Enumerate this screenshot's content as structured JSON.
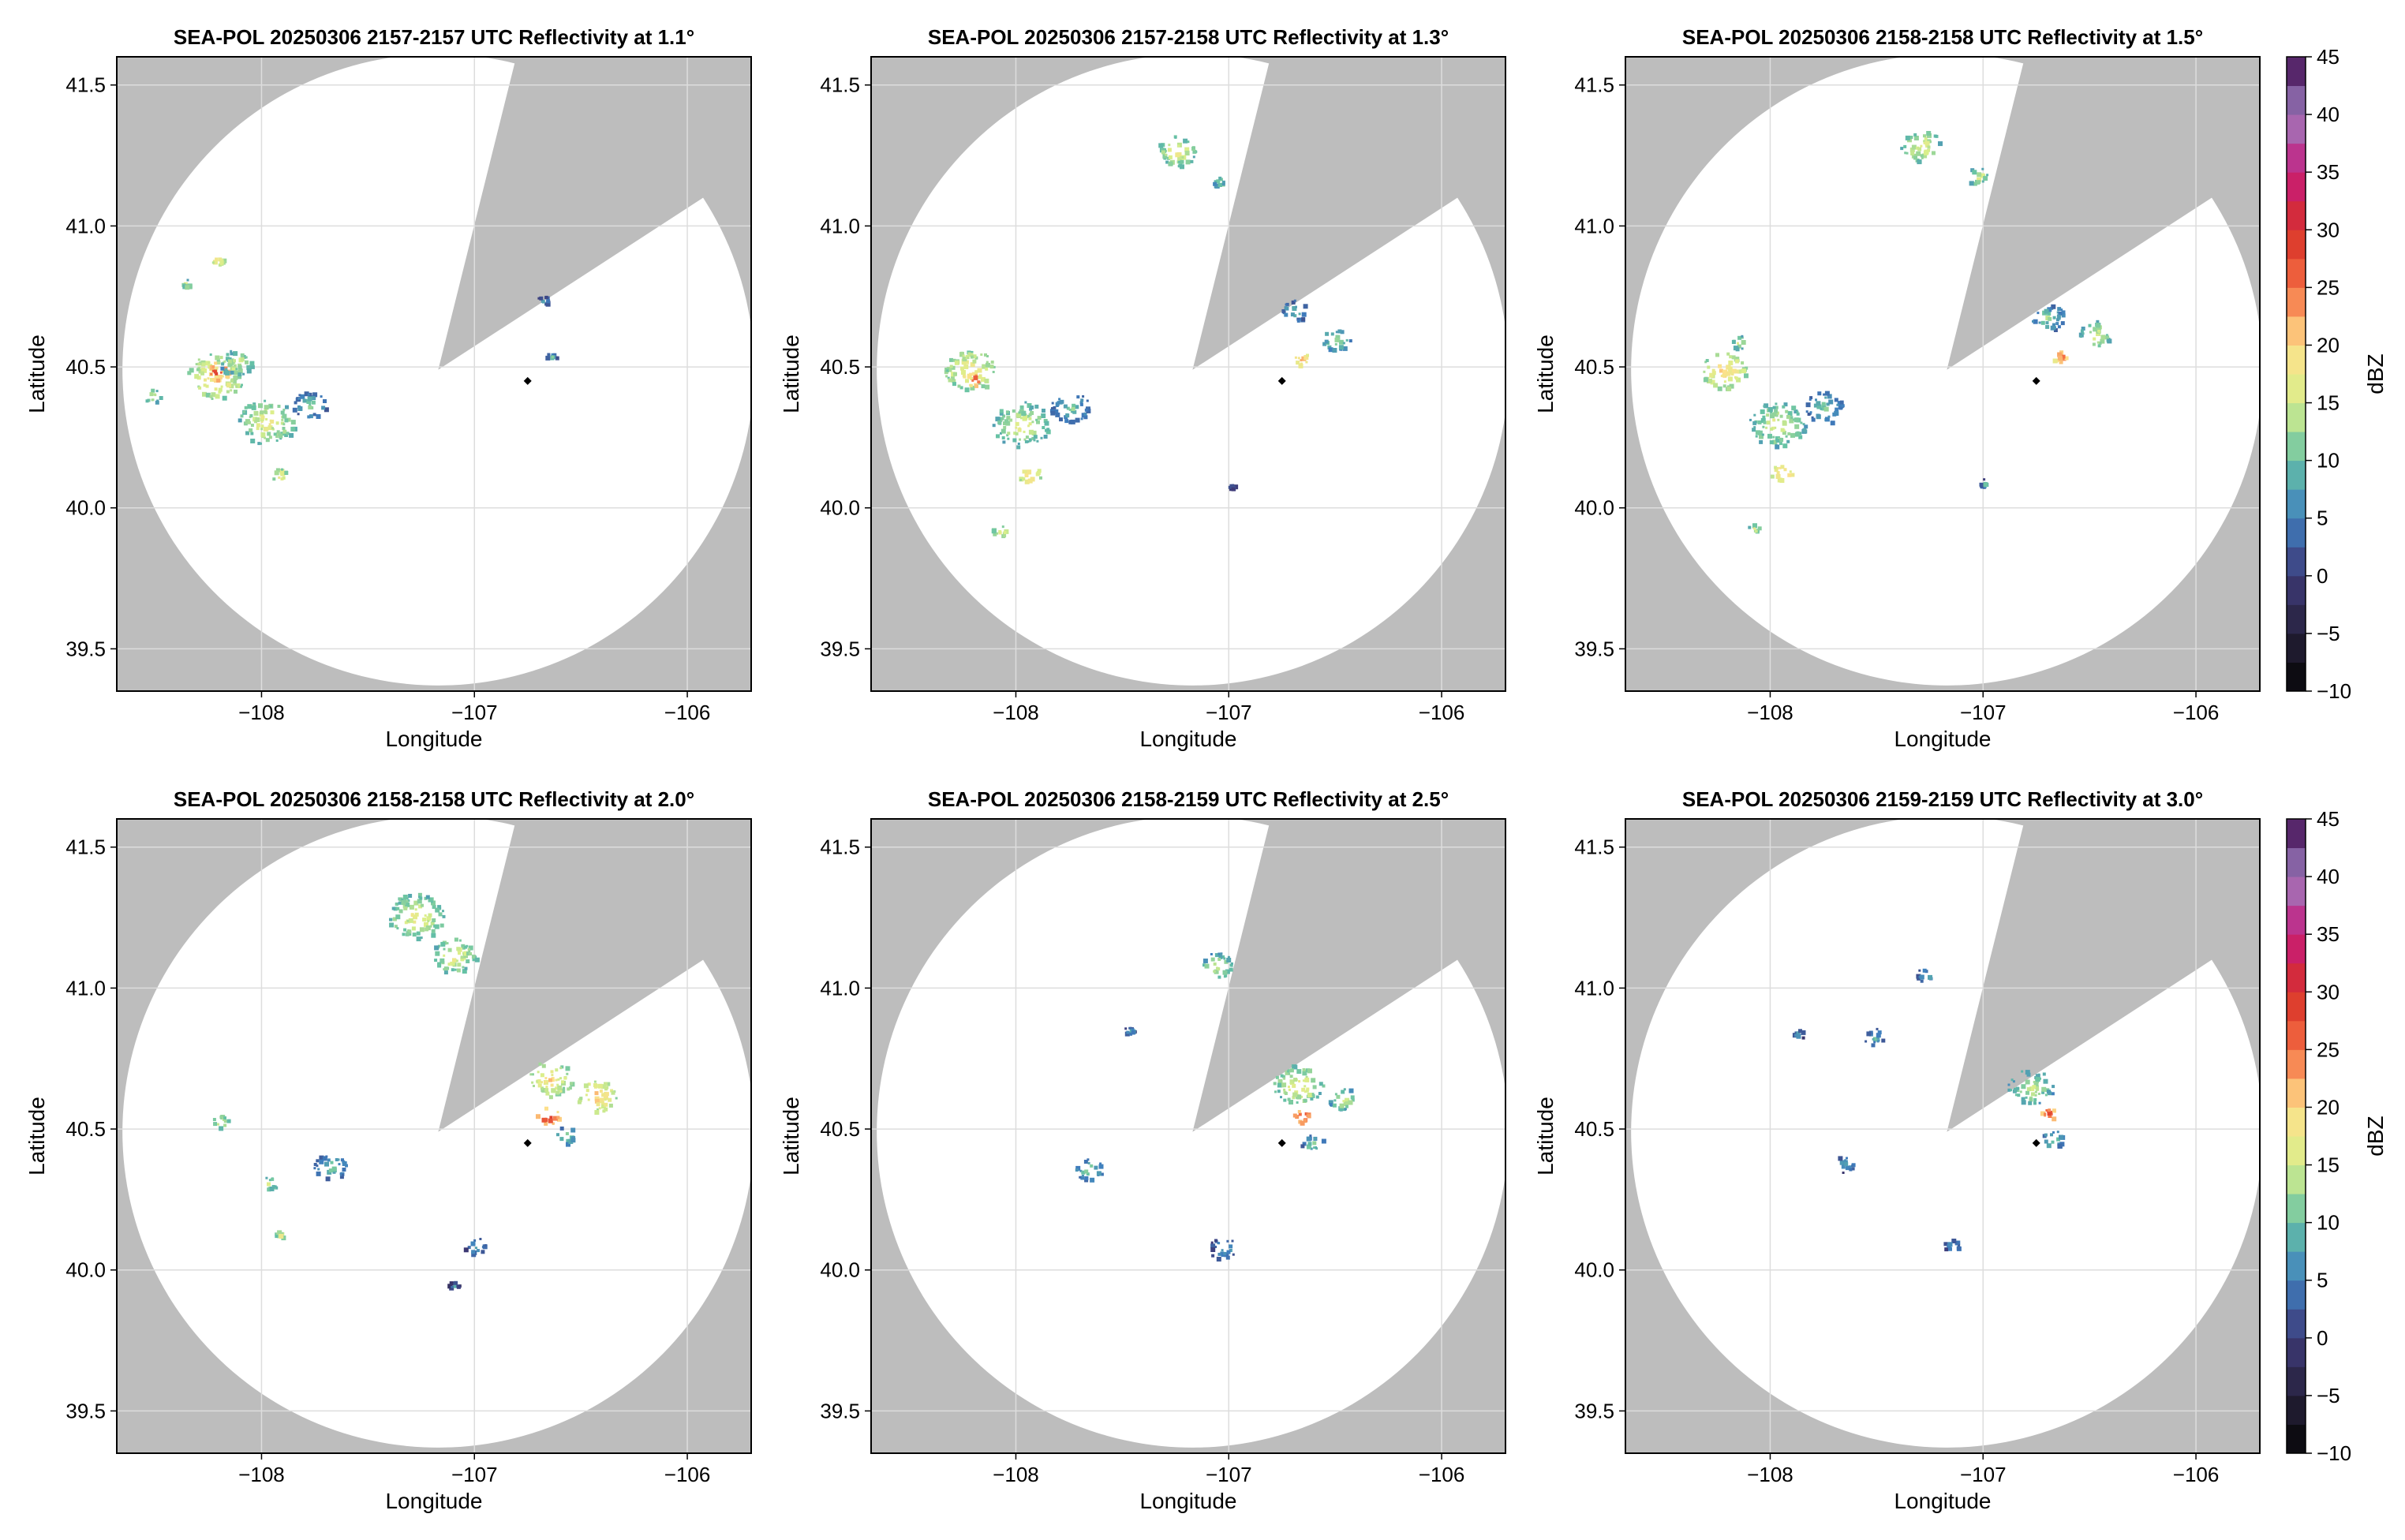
{
  "figure": {
    "background": "#ffffff",
    "outside_coverage_color": "#bdbdbd",
    "coverage_color": "#ffffff",
    "grid_color": "#dddddd"
  },
  "chart_data": [
    {
      "type": "heatmap",
      "title": "SEA-POL 20250306 2157-2157 UTC Reflectivity at 1.1°",
      "xlabel": "Longitude",
      "ylabel": "Latitude",
      "xlim": [
        -108.68,
        -105.7
      ],
      "ylim": [
        39.35,
        41.6
      ],
      "xticks": [
        -108,
        -107,
        -106
      ],
      "xtick_labels": [
        "−108",
        "−107",
        "−106"
      ],
      "yticks": [
        39.5,
        40.0,
        40.5,
        41.0,
        41.5
      ],
      "ytick_labels": [
        "39.5",
        "40.0",
        "40.5",
        "41.0",
        "41.5"
      ],
      "grid": true,
      "radar_center": [
        -107.17,
        40.49
      ],
      "radar_range_deg_lat": 1.12,
      "blocked_sector": {
        "from_deg": 14,
        "to_deg": 57
      },
      "site_marker": [
        -106.75,
        40.45
      ],
      "echoes": [
        {
          "lon": -108.22,
          "lat": 40.47,
          "dbz": 18,
          "spread": 0.1
        },
        {
          "lon": -108.21,
          "lat": 40.49,
          "dbz": 28,
          "spread": 0.04
        },
        {
          "lon": -108.12,
          "lat": 40.52,
          "dbz": 14,
          "spread": 0.06
        },
        {
          "lon": -107.98,
          "lat": 40.31,
          "dbz": 16,
          "spread": 0.1
        },
        {
          "lon": -107.78,
          "lat": 40.37,
          "dbz": 10,
          "spread": 0.06
        },
        {
          "lon": -107.92,
          "lat": 40.12,
          "dbz": 18,
          "spread": 0.03
        },
        {
          "lon": -108.21,
          "lat": 40.88,
          "dbz": 20,
          "spread": 0.02
        },
        {
          "lon": -108.36,
          "lat": 40.8,
          "dbz": 14,
          "spread": 0.02
        },
        {
          "lon": -108.52,
          "lat": 40.4,
          "dbz": 16,
          "spread": 0.03
        },
        {
          "lon": -106.68,
          "lat": 40.74,
          "dbz": 8,
          "spread": 0.02
        },
        {
          "lon": -106.64,
          "lat": 40.54,
          "dbz": 8,
          "spread": 0.02
        }
      ]
    },
    {
      "type": "heatmap",
      "title": "SEA-POL 20250306 2157-2158 UTC Reflectivity at 1.3°",
      "xlabel": "Longitude",
      "ylabel": "Latitude",
      "xlim": [
        -108.68,
        -105.7
      ],
      "ylim": [
        39.35,
        41.6
      ],
      "xticks": [
        -108,
        -107,
        -106
      ],
      "xtick_labels": [
        "−108",
        "−107",
        "−106"
      ],
      "yticks": [
        39.5,
        40.0,
        40.5,
        41.0,
        41.5
      ],
      "ytick_labels": [
        "39.5",
        "40.0",
        "40.5",
        "41.0",
        "41.5"
      ],
      "grid": true,
      "radar_center": [
        -107.17,
        40.49
      ],
      "radar_range_deg_lat": 1.12,
      "blocked_sector": {
        "from_deg": 14,
        "to_deg": 57
      },
      "site_marker": [
        -106.75,
        40.45
      ],
      "echoes": [
        {
          "lon": -108.22,
          "lat": 40.49,
          "dbz": 18,
          "spread": 0.09
        },
        {
          "lon": -108.2,
          "lat": 40.46,
          "dbz": 26,
          "spread": 0.03
        },
        {
          "lon": -107.98,
          "lat": 40.3,
          "dbz": 15,
          "spread": 0.1
        },
        {
          "lon": -107.75,
          "lat": 40.36,
          "dbz": 10,
          "spread": 0.07
        },
        {
          "lon": -107.94,
          "lat": 40.12,
          "dbz": 20,
          "spread": 0.04
        },
        {
          "lon": -107.25,
          "lat": 41.27,
          "dbz": 16,
          "spread": 0.07
        },
        {
          "lon": -107.05,
          "lat": 41.16,
          "dbz": 14,
          "spread": 0.02
        },
        {
          "lon": -106.7,
          "lat": 40.7,
          "dbz": 9,
          "spread": 0.05
        },
        {
          "lon": -106.5,
          "lat": 40.6,
          "dbz": 13,
          "spread": 0.05
        },
        {
          "lon": -106.66,
          "lat": 40.53,
          "dbz": 22,
          "spread": 0.03
        },
        {
          "lon": -108.08,
          "lat": 39.92,
          "dbz": 16,
          "spread": 0.03
        },
        {
          "lon": -106.99,
          "lat": 40.08,
          "dbz": 6,
          "spread": 0.01
        }
      ]
    },
    {
      "type": "heatmap",
      "title": "SEA-POL 20250306 2158-2158 UTC Reflectivity at 1.5°",
      "xlabel": "Longitude",
      "ylabel": "Latitude",
      "xlim": [
        -108.68,
        -105.7
      ],
      "ylim": [
        39.35,
        41.6
      ],
      "xticks": [
        -108,
        -107,
        -106
      ],
      "xtick_labels": [
        "−108",
        "−107",
        "−106"
      ],
      "yticks": [
        39.5,
        40.0,
        40.5,
        41.0,
        41.5
      ],
      "ytick_labels": [
        "39.5",
        "40.0",
        "40.5",
        "41.0",
        "41.5"
      ],
      "grid": true,
      "radar_center": [
        -107.17,
        40.49
      ],
      "radar_range_deg_lat": 1.12,
      "blocked_sector": {
        "from_deg": 14,
        "to_deg": 57
      },
      "site_marker": [
        -106.75,
        40.45
      ],
      "echoes": [
        {
          "lon": -108.22,
          "lat": 40.49,
          "dbz": 19,
          "spread": 0.08
        },
        {
          "lon": -108.15,
          "lat": 40.59,
          "dbz": 15,
          "spread": 0.03
        },
        {
          "lon": -107.97,
          "lat": 40.3,
          "dbz": 15,
          "spread": 0.1
        },
        {
          "lon": -107.75,
          "lat": 40.36,
          "dbz": 10,
          "spread": 0.07
        },
        {
          "lon": -107.95,
          "lat": 40.13,
          "dbz": 22,
          "spread": 0.04
        },
        {
          "lon": -107.3,
          "lat": 41.29,
          "dbz": 16,
          "spread": 0.07
        },
        {
          "lon": -107.03,
          "lat": 41.18,
          "dbz": 15,
          "spread": 0.04
        },
        {
          "lon": -106.7,
          "lat": 40.68,
          "dbz": 11,
          "spread": 0.06
        },
        {
          "lon": -106.48,
          "lat": 40.62,
          "dbz": 15,
          "spread": 0.06
        },
        {
          "lon": -106.64,
          "lat": 40.54,
          "dbz": 24,
          "spread": 0.03
        },
        {
          "lon": -107.0,
          "lat": 40.09,
          "dbz": 8,
          "spread": 0.02
        },
        {
          "lon": -108.08,
          "lat": 39.93,
          "dbz": 16,
          "spread": 0.02
        }
      ]
    },
    {
      "type": "heatmap",
      "title": "SEA-POL 20250306 2158-2158 UTC Reflectivity at 2.0°",
      "xlabel": "Longitude",
      "ylabel": "Latitude",
      "xlim": [
        -108.68,
        -105.7
      ],
      "ylim": [
        39.35,
        41.6
      ],
      "xticks": [
        -108,
        -107,
        -106
      ],
      "xtick_labels": [
        "−108",
        "−107",
        "−106"
      ],
      "yticks": [
        39.5,
        40.0,
        40.5,
        41.0,
        41.5
      ],
      "ytick_labels": [
        "39.5",
        "40.0",
        "40.5",
        "41.0",
        "41.5"
      ],
      "grid": true,
      "radar_center": [
        -107.17,
        40.49
      ],
      "radar_range_deg_lat": 1.12,
      "blocked_sector": {
        "from_deg": 14,
        "to_deg": 57
      },
      "site_marker": [
        -106.75,
        40.45
      ],
      "echoes": [
        {
          "lon": -107.28,
          "lat": 41.26,
          "dbz": 16,
          "spread": 0.1
        },
        {
          "lon": -107.1,
          "lat": 41.12,
          "dbz": 16,
          "spread": 0.08
        },
        {
          "lon": -106.65,
          "lat": 40.68,
          "dbz": 18,
          "spread": 0.08
        },
        {
          "lon": -106.66,
          "lat": 40.55,
          "dbz": 28,
          "spread": 0.04
        },
        {
          "lon": -106.43,
          "lat": 40.62,
          "dbz": 20,
          "spread": 0.07
        },
        {
          "lon": -106.58,
          "lat": 40.48,
          "dbz": 12,
          "spread": 0.04
        },
        {
          "lon": -107.68,
          "lat": 40.37,
          "dbz": 10,
          "spread": 0.06
        },
        {
          "lon": -108.2,
          "lat": 40.53,
          "dbz": 16,
          "spread": 0.03
        },
        {
          "lon": -107.97,
          "lat": 40.31,
          "dbz": 14,
          "spread": 0.03
        },
        {
          "lon": -107.92,
          "lat": 40.13,
          "dbz": 16,
          "spread": 0.02
        },
        {
          "lon": -107.0,
          "lat": 40.09,
          "dbz": 8,
          "spread": 0.04
        },
        {
          "lon": -107.1,
          "lat": 39.95,
          "dbz": 6,
          "spread": 0.02
        }
      ]
    },
    {
      "type": "heatmap",
      "title": "SEA-POL 20250306 2158-2159 UTC Reflectivity at 2.5°",
      "xlabel": "Longitude",
      "ylabel": "Latitude",
      "xlim": [
        -108.68,
        -105.7
      ],
      "ylim": [
        39.35,
        41.6
      ],
      "xticks": [
        -108,
        -107,
        -106
      ],
      "xtick_labels": [
        "−108",
        "−107",
        "−106"
      ],
      "yticks": [
        39.5,
        40.0,
        40.5,
        41.0,
        41.5
      ],
      "ytick_labels": [
        "39.5",
        "40.0",
        "40.5",
        "41.0",
        "41.5"
      ],
      "grid": true,
      "radar_center": [
        -107.17,
        40.49
      ],
      "radar_range_deg_lat": 1.12,
      "blocked_sector": {
        "from_deg": 14,
        "to_deg": 57
      },
      "site_marker": [
        -106.75,
        40.45
      ],
      "echoes": [
        {
          "lon": -107.06,
          "lat": 41.08,
          "dbz": 14,
          "spread": 0.06
        },
        {
          "lon": -106.68,
          "lat": 40.66,
          "dbz": 16,
          "spread": 0.09
        },
        {
          "lon": -106.66,
          "lat": 40.55,
          "dbz": 28,
          "spread": 0.03
        },
        {
          "lon": -106.47,
          "lat": 40.61,
          "dbz": 14,
          "spread": 0.05
        },
        {
          "lon": -106.61,
          "lat": 40.45,
          "dbz": 11,
          "spread": 0.04
        },
        {
          "lon": -107.66,
          "lat": 40.36,
          "dbz": 11,
          "spread": 0.05
        },
        {
          "lon": -107.47,
          "lat": 40.85,
          "dbz": 8,
          "spread": 0.02
        },
        {
          "lon": -107.03,
          "lat": 40.08,
          "dbz": 8,
          "spread": 0.05
        }
      ]
    },
    {
      "type": "heatmap",
      "title": "SEA-POL 20250306 2159-2159 UTC Reflectivity at 3.0°",
      "xlabel": "Longitude",
      "ylabel": "Latitude",
      "xlim": [
        -108.68,
        -105.7
      ],
      "ylim": [
        39.35,
        41.6
      ],
      "xticks": [
        -108,
        -107,
        -106
      ],
      "xtick_labels": [
        "−108",
        "−107",
        "−106"
      ],
      "yticks": [
        39.5,
        40.0,
        40.5,
        41.0,
        41.5
      ],
      "ytick_labels": [
        "39.5",
        "40.0",
        "40.5",
        "41.0",
        "41.5"
      ],
      "grid": true,
      "radar_center": [
        -107.17,
        40.49
      ],
      "radar_range_deg_lat": 1.12,
      "blocked_sector": {
        "from_deg": 14,
        "to_deg": 57
      },
      "site_marker": [
        -106.75,
        40.45
      ],
      "echoes": [
        {
          "lon": -106.78,
          "lat": 40.65,
          "dbz": 14,
          "spread": 0.08
        },
        {
          "lon": -106.7,
          "lat": 40.56,
          "dbz": 26,
          "spread": 0.03
        },
        {
          "lon": -106.68,
          "lat": 40.47,
          "dbz": 11,
          "spread": 0.04
        },
        {
          "lon": -107.52,
          "lat": 40.83,
          "dbz": 9,
          "spread": 0.04
        },
        {
          "lon": -107.87,
          "lat": 40.84,
          "dbz": 8,
          "spread": 0.02
        },
        {
          "lon": -107.28,
          "lat": 41.05,
          "dbz": 9,
          "spread": 0.03
        },
        {
          "lon": -107.65,
          "lat": 40.38,
          "dbz": 8,
          "spread": 0.04
        },
        {
          "lon": -107.15,
          "lat": 40.09,
          "dbz": 8,
          "spread": 0.03
        }
      ]
    }
  ],
  "colorbar": {
    "label": "dBZ",
    "min": -10,
    "max": 45,
    "step": 2.5,
    "ticks": [
      -10,
      -5,
      0,
      5,
      10,
      15,
      20,
      25,
      30,
      35,
      40,
      45
    ],
    "tick_labels": [
      "−10",
      "−5",
      "0",
      "5",
      "10",
      "15",
      "20",
      "25",
      "30",
      "35",
      "40",
      "45"
    ],
    "color_stops": [
      {
        "value": -10,
        "color": "#050505"
      },
      {
        "value": -5,
        "color": "#26213a"
      },
      {
        "value": 0,
        "color": "#3e3a78"
      },
      {
        "value": 5,
        "color": "#3f7fbf"
      },
      {
        "value": 10,
        "color": "#66c2a5"
      },
      {
        "value": 15,
        "color": "#d9ef8b"
      },
      {
        "value": 20,
        "color": "#fee08b"
      },
      {
        "value": 25,
        "color": "#f46d43"
      },
      {
        "value": 30,
        "color": "#d73027"
      },
      {
        "value": 35,
        "color": "#c51b7d"
      },
      {
        "value": 40,
        "color": "#9e7fc0"
      },
      {
        "value": 45,
        "color": "#3f0a4f"
      }
    ]
  }
}
